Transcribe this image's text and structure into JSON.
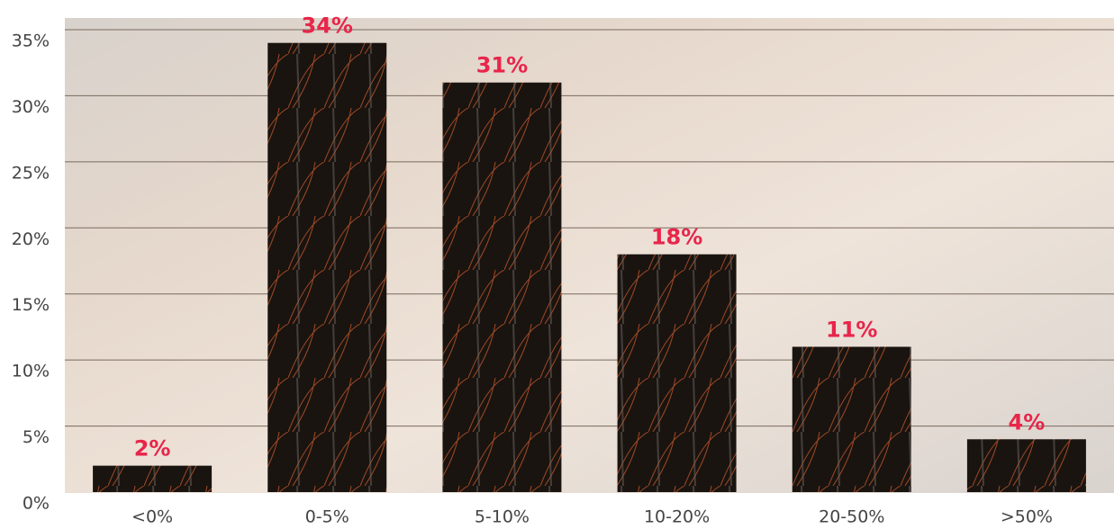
{
  "chart_data": {
    "type": "bar",
    "categories": [
      "<0%",
      "0-5%",
      "5-10%",
      "10-20%",
      "20-50%",
      ">50%"
    ],
    "values": [
      2,
      34,
      31,
      18,
      11,
      4
    ],
    "value_labels": [
      "2%",
      "34%",
      "31%",
      "18%",
      "11%",
      "4%"
    ],
    "color": "#1a1410",
    "ylim": [
      0,
      35
    ],
    "yticks": [
      {
        "value": 0,
        "label": "0%"
      },
      {
        "value": 5,
        "label": "5%"
      },
      {
        "value": 10,
        "label": "10%"
      },
      {
        "value": 15,
        "label": "15%"
      },
      {
        "value": 20,
        "label": "20%"
      },
      {
        "value": 25,
        "label": "25%"
      },
      {
        "value": 30,
        "label": "30%"
      },
      {
        "value": 35,
        "label": "35%"
      }
    ],
    "grid": true
  }
}
